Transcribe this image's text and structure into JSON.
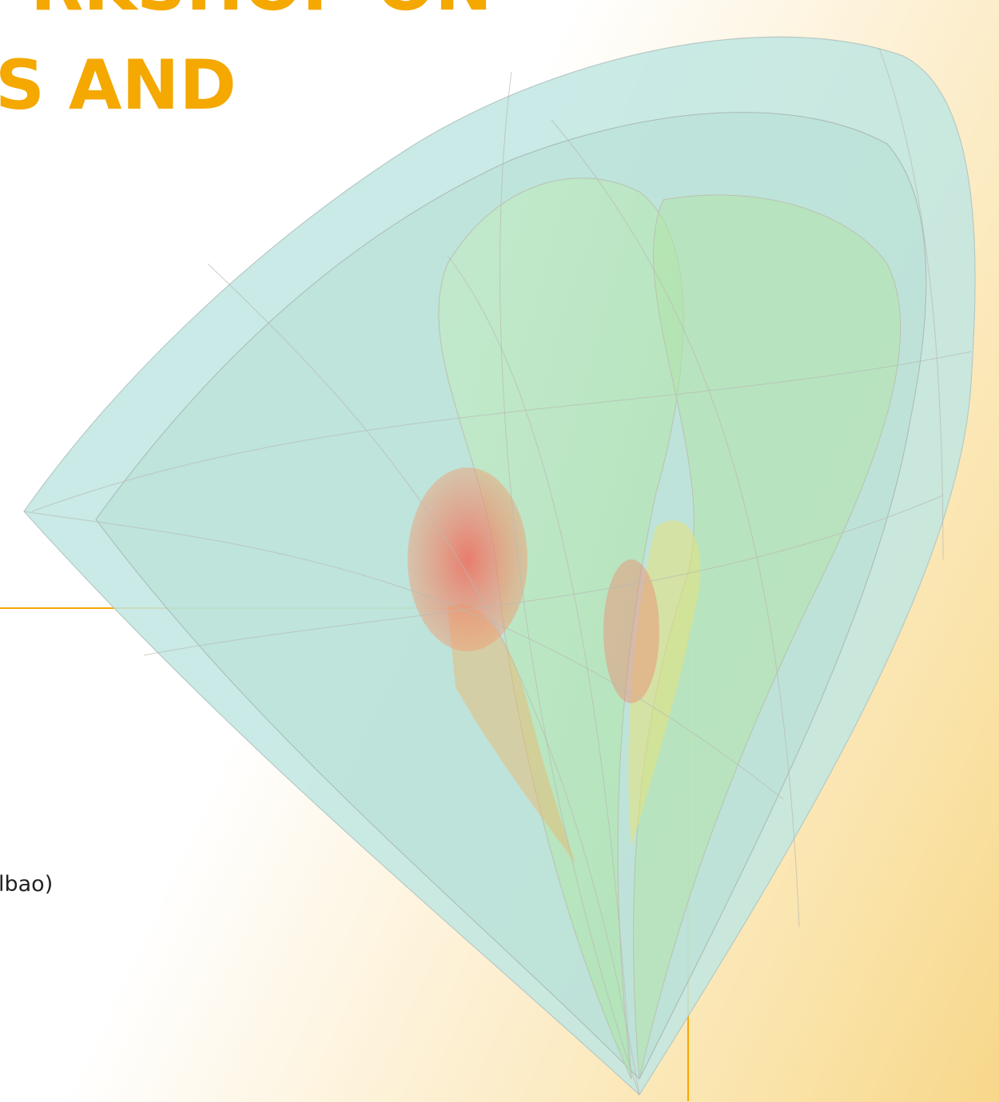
{
  "heading": {
    "line1": "RKSHOP ON",
    "line2": "S AND"
  },
  "info": {
    "text": "lbao)"
  },
  "colors": {
    "accent": "#f4a800",
    "shell": "#bfe6e2",
    "core": "#f08070"
  },
  "image": {
    "subject": "translucent nested 3D surfaces, red core"
  }
}
